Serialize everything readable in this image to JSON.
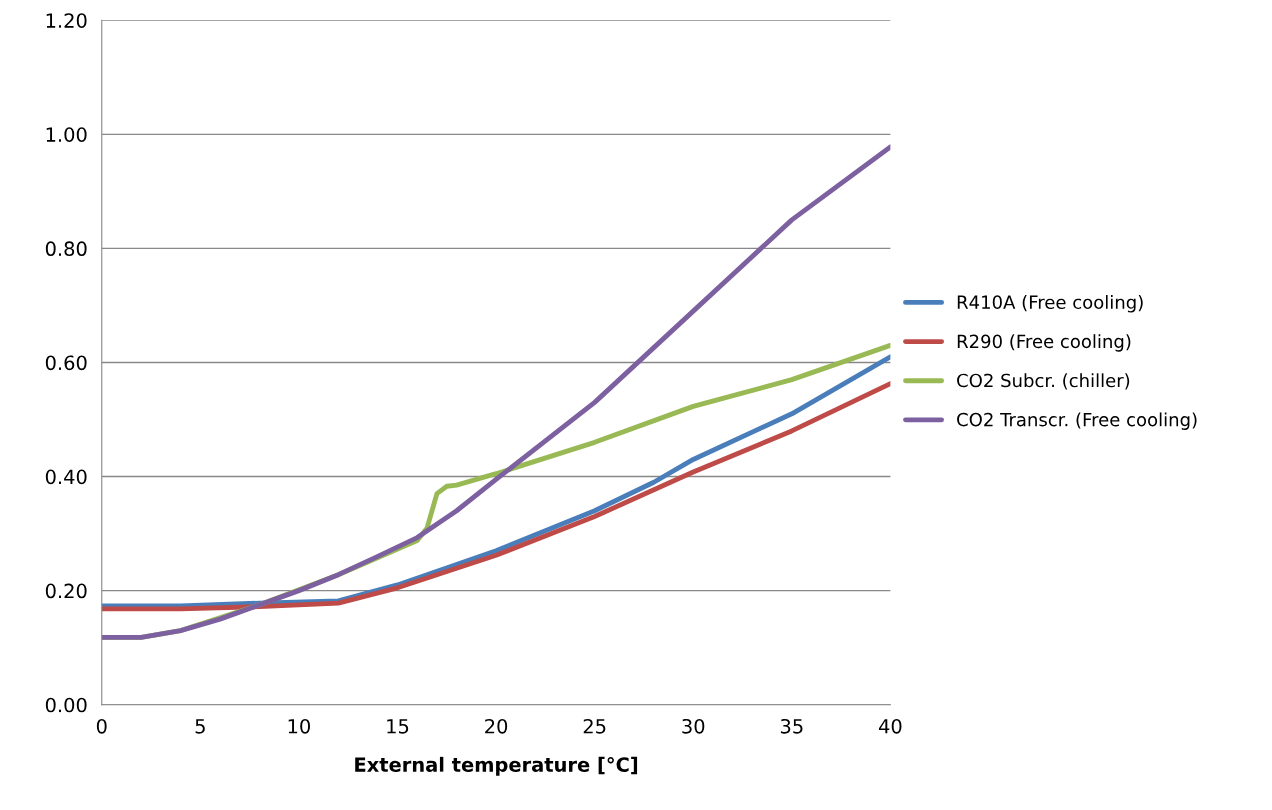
{
  "chart_data": {
    "type": "line",
    "xlabel": "External temperature [°C]",
    "xlim": [
      0,
      40
    ],
    "xticks": [
      0,
      5,
      10,
      15,
      20,
      25,
      30,
      35,
      40
    ],
    "ylim": [
      0,
      1.2
    ],
    "yticks": [
      {
        "value": 0,
        "label": "0.00"
      },
      {
        "value": 0.2,
        "label": "0.20"
      },
      {
        "value": 0.4,
        "label": "0.40"
      },
      {
        "value": 0.6,
        "label": "0.60"
      },
      {
        "value": 0.8,
        "label": "0.80"
      },
      {
        "value": 1.0,
        "label": "1.00"
      },
      {
        "value": 1.2,
        "label": "1.20"
      }
    ],
    "grid": "y",
    "legend": "right",
    "marker": "none",
    "line_style": "solid",
    "series": [
      {
        "name": "R410A (Free cooling)",
        "color": "#4a7ebb",
        "x": [
          0,
          4,
          8,
          12,
          15,
          20,
          25,
          28,
          30,
          35,
          40
        ],
        "values": [
          0.173,
          0.173,
          0.178,
          0.182,
          0.21,
          0.27,
          0.34,
          0.39,
          0.43,
          0.51,
          0.61
        ]
      },
      {
        "name": "R290 (Free cooling)",
        "color": "#be4b48",
        "x": [
          0,
          4,
          8,
          12,
          15,
          20,
          25,
          30,
          35,
          40
        ],
        "values": [
          0.168,
          0.168,
          0.172,
          0.178,
          0.205,
          0.262,
          0.33,
          0.408,
          0.48,
          0.563
        ]
      },
      {
        "name": "CO2 Subcr. (chiller)",
        "color": "#98b954",
        "x": [
          0,
          2,
          4,
          8,
          12,
          16,
          16.5,
          17,
          17.5,
          18,
          20,
          25,
          30,
          35,
          40
        ],
        "values": [
          0.118,
          0.118,
          0.13,
          0.175,
          0.228,
          0.288,
          0.31,
          0.37,
          0.383,
          0.385,
          0.405,
          0.46,
          0.523,
          0.57,
          0.63
        ]
      },
      {
        "name": "CO2 Transcr. (Free cooling)",
        "color": "#7d60a0",
        "x": [
          0,
          2,
          4,
          6,
          8,
          10,
          12,
          14,
          16,
          18,
          20,
          25,
          30,
          35,
          40
        ],
        "values": [
          0.118,
          0.118,
          0.13,
          0.15,
          0.175,
          0.2,
          0.228,
          0.26,
          0.293,
          0.34,
          0.395,
          0.53,
          0.69,
          0.85,
          0.978
        ]
      }
    ]
  }
}
